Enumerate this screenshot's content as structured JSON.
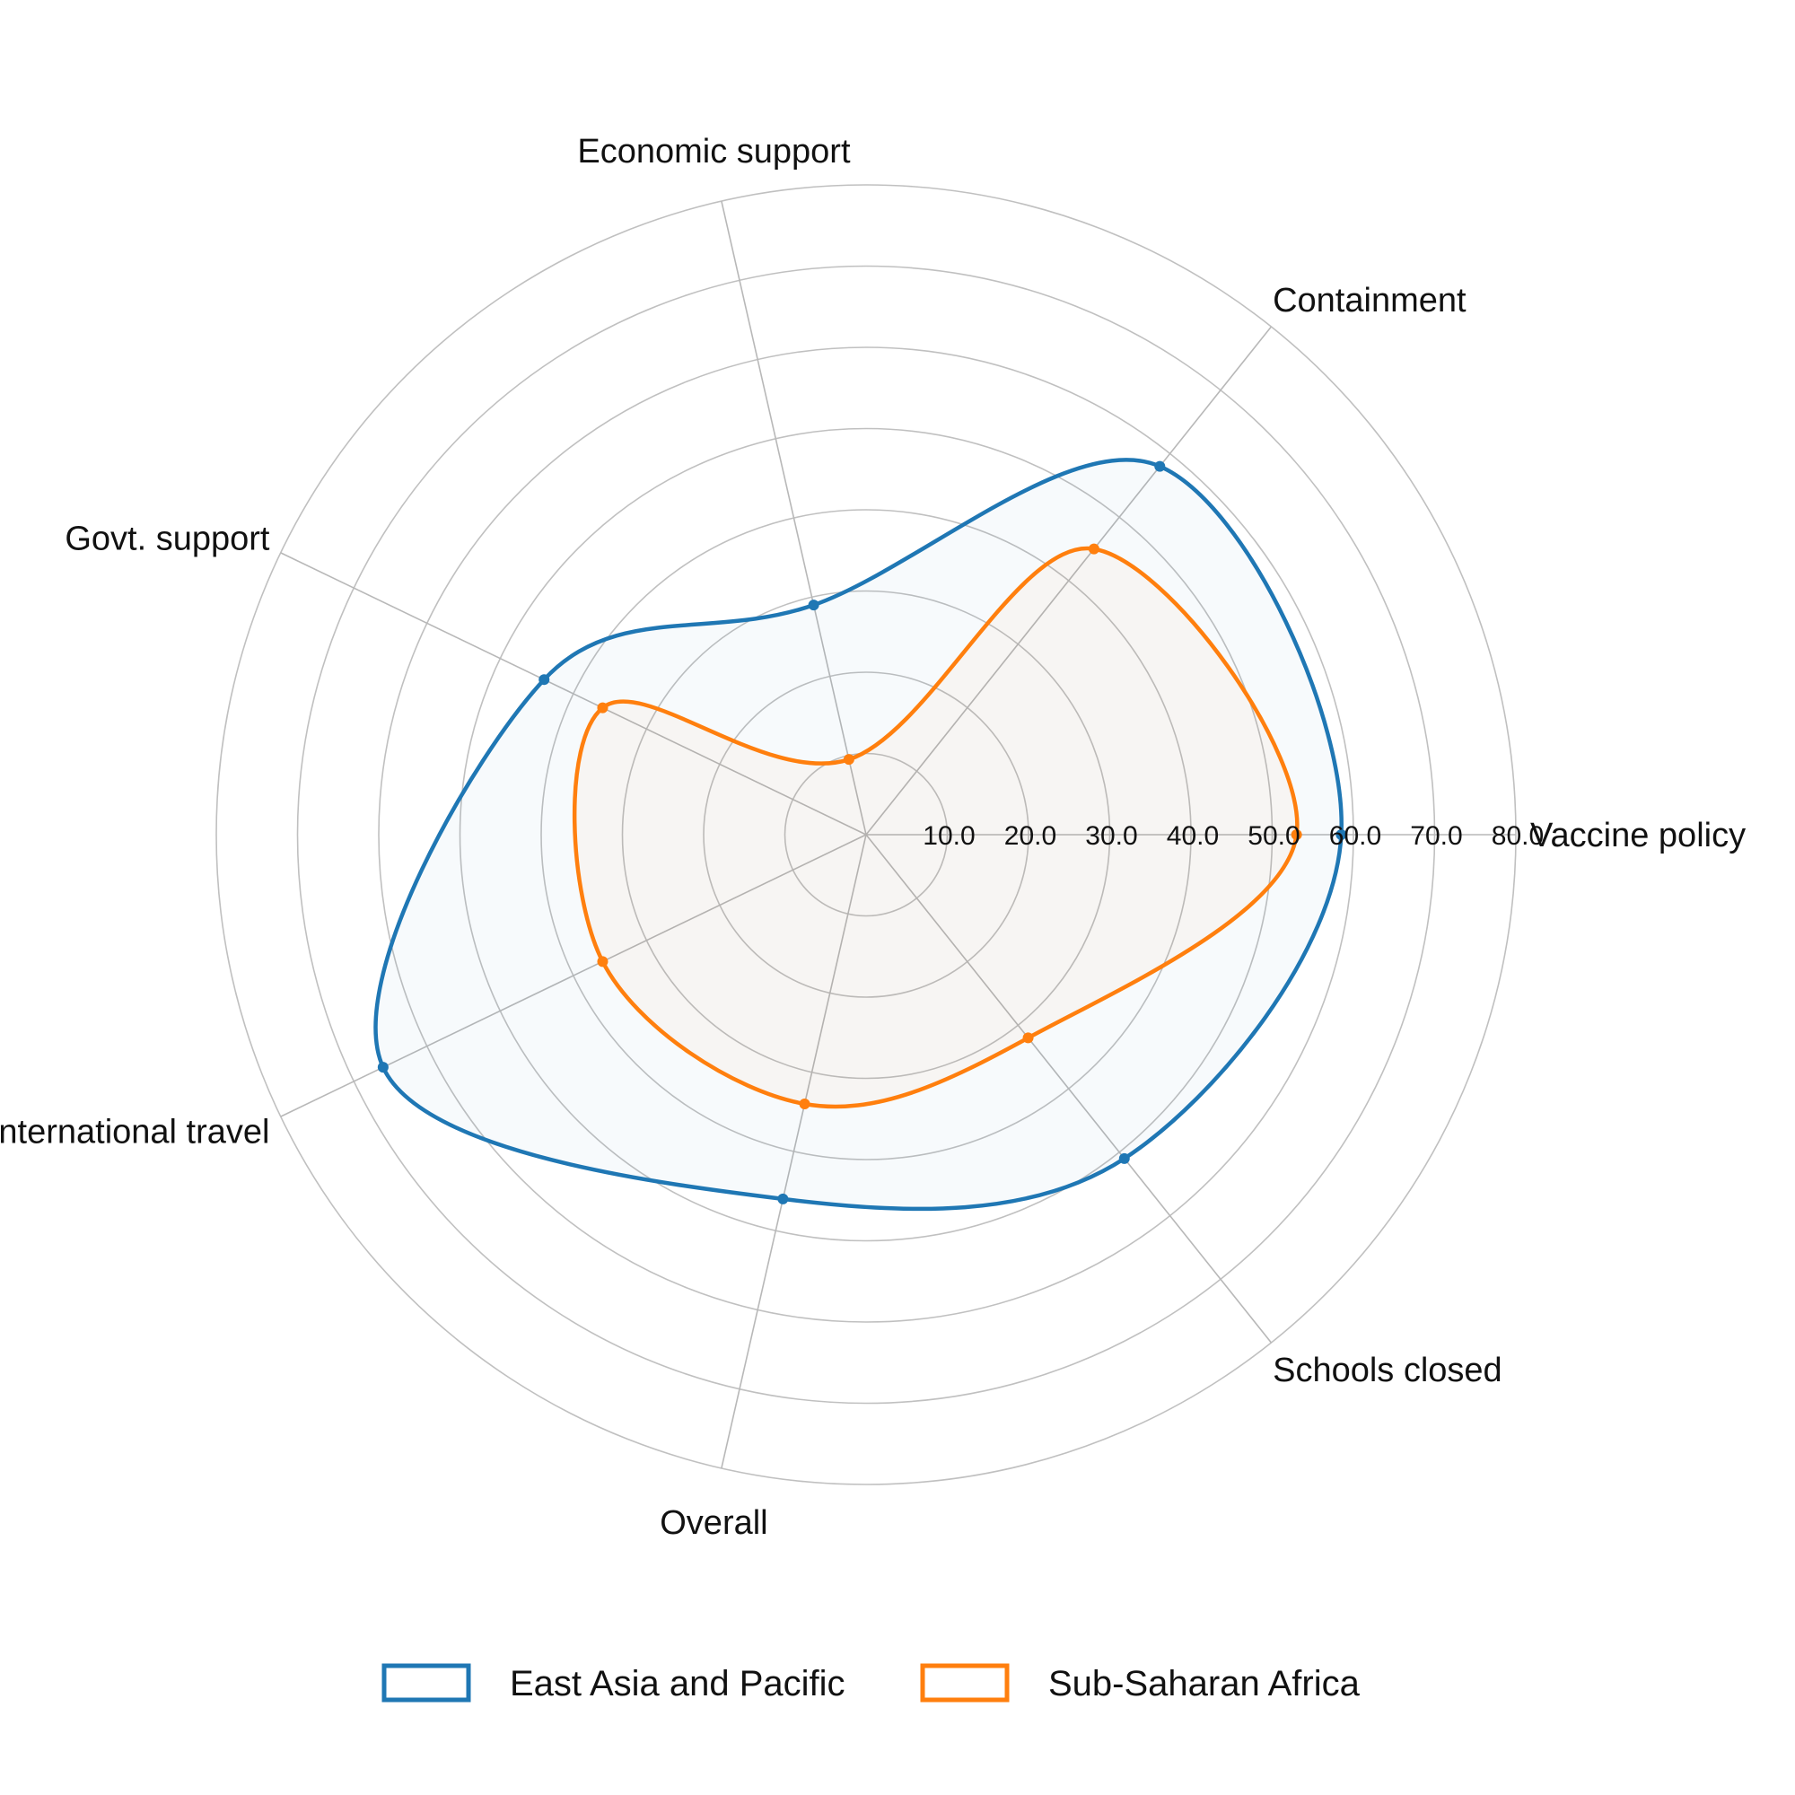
{
  "chart_data": {
    "type": "radar",
    "axes": [
      "Vaccine policy",
      "Containment",
      "Economic support",
      "Govt. support",
      "International travel",
      "Overall",
      "Schools closed"
    ],
    "ticks": [
      "10.0",
      "20.0",
      "30.0",
      "40.0",
      "50.0",
      "60.0",
      "70.0",
      "80.0"
    ],
    "rlim": [
      0,
      80
    ],
    "grid": true,
    "legend_position": "bottom",
    "series": [
      {
        "name": "East Asia and Pacific",
        "color": "#1f77b4",
        "values": [
          58.5,
          58.0,
          29.0,
          44.0,
          66.0,
          46.0,
          51.0
        ]
      },
      {
        "name": "Sub-Saharan Africa",
        "color": "#ff7f0e",
        "values": [
          53.0,
          45.0,
          9.5,
          36.0,
          36.0,
          34.0,
          32.0
        ]
      }
    ]
  }
}
